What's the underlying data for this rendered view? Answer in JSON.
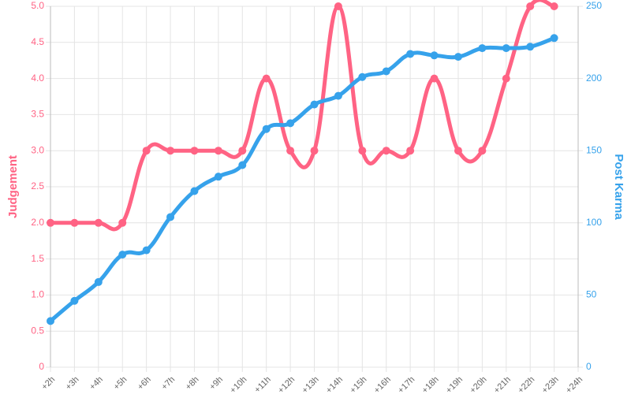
{
  "chart_data": {
    "type": "line",
    "ylabel": "Judgement",
    "y2label": "Post Karma",
    "categories": [
      "+2h",
      "+3h",
      "+4h",
      "+5h",
      "+6h",
      "+7h",
      "+8h",
      "+9h",
      "+10h",
      "+11h",
      "+12h",
      "+13h",
      "+14h",
      "+15h",
      "+16h",
      "+17h",
      "+18h",
      "+19h",
      "+20h",
      "+21h",
      "+22h",
      "+23h",
      "+24h"
    ],
    "series": [
      {
        "name": "Judgement",
        "color": "#ff6384",
        "axis": "y",
        "values": [
          2,
          2,
          2,
          2,
          3,
          3,
          3,
          3,
          3,
          4,
          3,
          3,
          5,
          3,
          3,
          3,
          4,
          3,
          3,
          4,
          5,
          5,
          null
        ]
      },
      {
        "name": "Post Karma",
        "color": "#36a2eb",
        "axis": "y2",
        "values": [
          32,
          46,
          59,
          78,
          81,
          104,
          122,
          132,
          140,
          165,
          169,
          182,
          188,
          201,
          205,
          217,
          216,
          215,
          221,
          221,
          222,
          228,
          null
        ]
      }
    ],
    "ylim": [
      0,
      5
    ],
    "yticks": [
      0,
      0.5,
      {
        "value": 1,
        "label": "1.0"
      },
      1.5,
      {
        "value": 2,
        "label": "2.0"
      },
      2.5,
      {
        "value": 3,
        "label": "3.0"
      },
      3.5,
      {
        "value": 4,
        "label": "4.0"
      },
      4.5,
      {
        "value": 5,
        "label": "5.0"
      }
    ],
    "y2lim": [
      0,
      250
    ],
    "y2ticks": [
      0,
      50,
      100,
      150,
      200,
      250
    ],
    "grid": true
  }
}
